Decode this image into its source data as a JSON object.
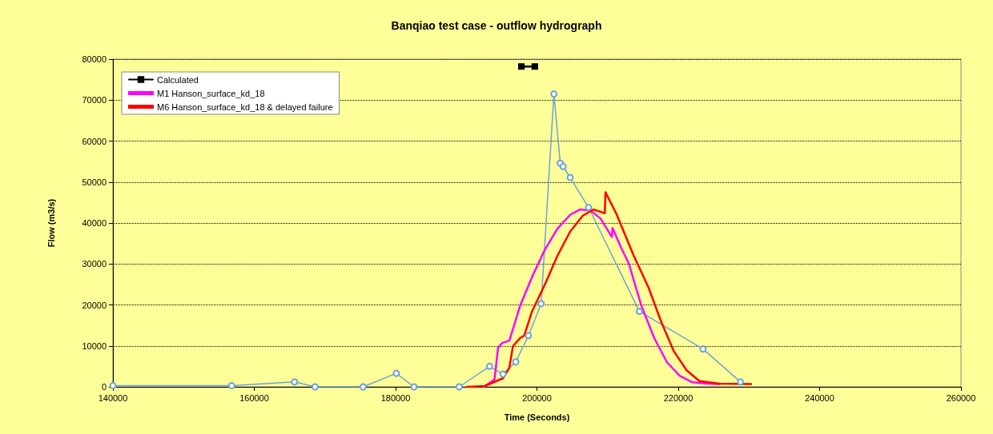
{
  "chart_data": {
    "type": "line",
    "title": "Banqiao test case - outflow hydrograph",
    "xlabel": "Time (Seconds)",
    "ylabel": "Flow (m3/s)",
    "xlim": [
      140000,
      260000
    ],
    "xticks": [
      140000,
      160000,
      180000,
      200000,
      220000,
      240000,
      260000
    ],
    "ylim": [
      0,
      80000
    ],
    "yticks": [
      0,
      10000,
      20000,
      30000,
      40000,
      50000,
      60000,
      70000,
      80000
    ],
    "grid": "y",
    "legend": "top left",
    "line_style": "solid",
    "series": [
      {
        "name": "Calculated",
        "color": "#000000",
        "marker": "square",
        "x": [
          197800,
          199700
        ],
        "values": [
          78200,
          78200
        ]
      },
      {
        "color": "#6ba3d6",
        "marker": "circle",
        "x": [
          140000,
          156800,
          165700,
          168600,
          175400,
          180100,
          182600,
          189000,
          193300,
          195200,
          197000,
          198800,
          200600,
          202400,
          203300,
          203700,
          204700,
          207300,
          214500,
          223500,
          228800
        ],
        "values": [
          300,
          300,
          1200,
          0,
          0,
          3300,
          0,
          0,
          5000,
          3100,
          6100,
          12500,
          20300,
          71500,
          54600,
          53800,
          51100,
          43800,
          18400,
          9250,
          1200
        ]
      },
      {
        "name": "M1 Hanson_surface_kd_18",
        "color": "#ff00ff",
        "marker": "none",
        "x": [
          192500,
          194000,
          194500,
          195100,
          196100,
          197600,
          199300,
          201100,
          202900,
          204700,
          206100,
          207600,
          209000,
          210600,
          210700,
          211900,
          213000,
          214800,
          216600,
          218400,
          220200,
          222000,
          224100,
          225800
        ],
        "values": [
          0,
          1800,
          9600,
          10700,
          11300,
          19700,
          26800,
          33400,
          38600,
          42000,
          43300,
          43000,
          41100,
          36600,
          38800,
          34000,
          30100,
          19700,
          11900,
          6000,
          2700,
          1100,
          800,
          700
        ]
      },
      {
        "name": "M6 Hanson_surface_kd_18 & delayed failure",
        "color": "#ff0000",
        "marker": "none",
        "x": [
          190100,
          192600,
          195200,
          196100,
          196600,
          197600,
          198200,
          199300,
          201100,
          202900,
          204700,
          206500,
          208000,
          209600,
          209700,
          211200,
          213700,
          215800,
          217600,
          219400,
          221200,
          223000,
          225800,
          230300
        ],
        "values": [
          0,
          200,
          2100,
          4700,
          9900,
          11900,
          12500,
          18400,
          24900,
          32000,
          37900,
          41800,
          43300,
          42400,
          47500,
          42400,
          32000,
          24200,
          15800,
          8600,
          4000,
          1400,
          800,
          700
        ]
      }
    ]
  }
}
